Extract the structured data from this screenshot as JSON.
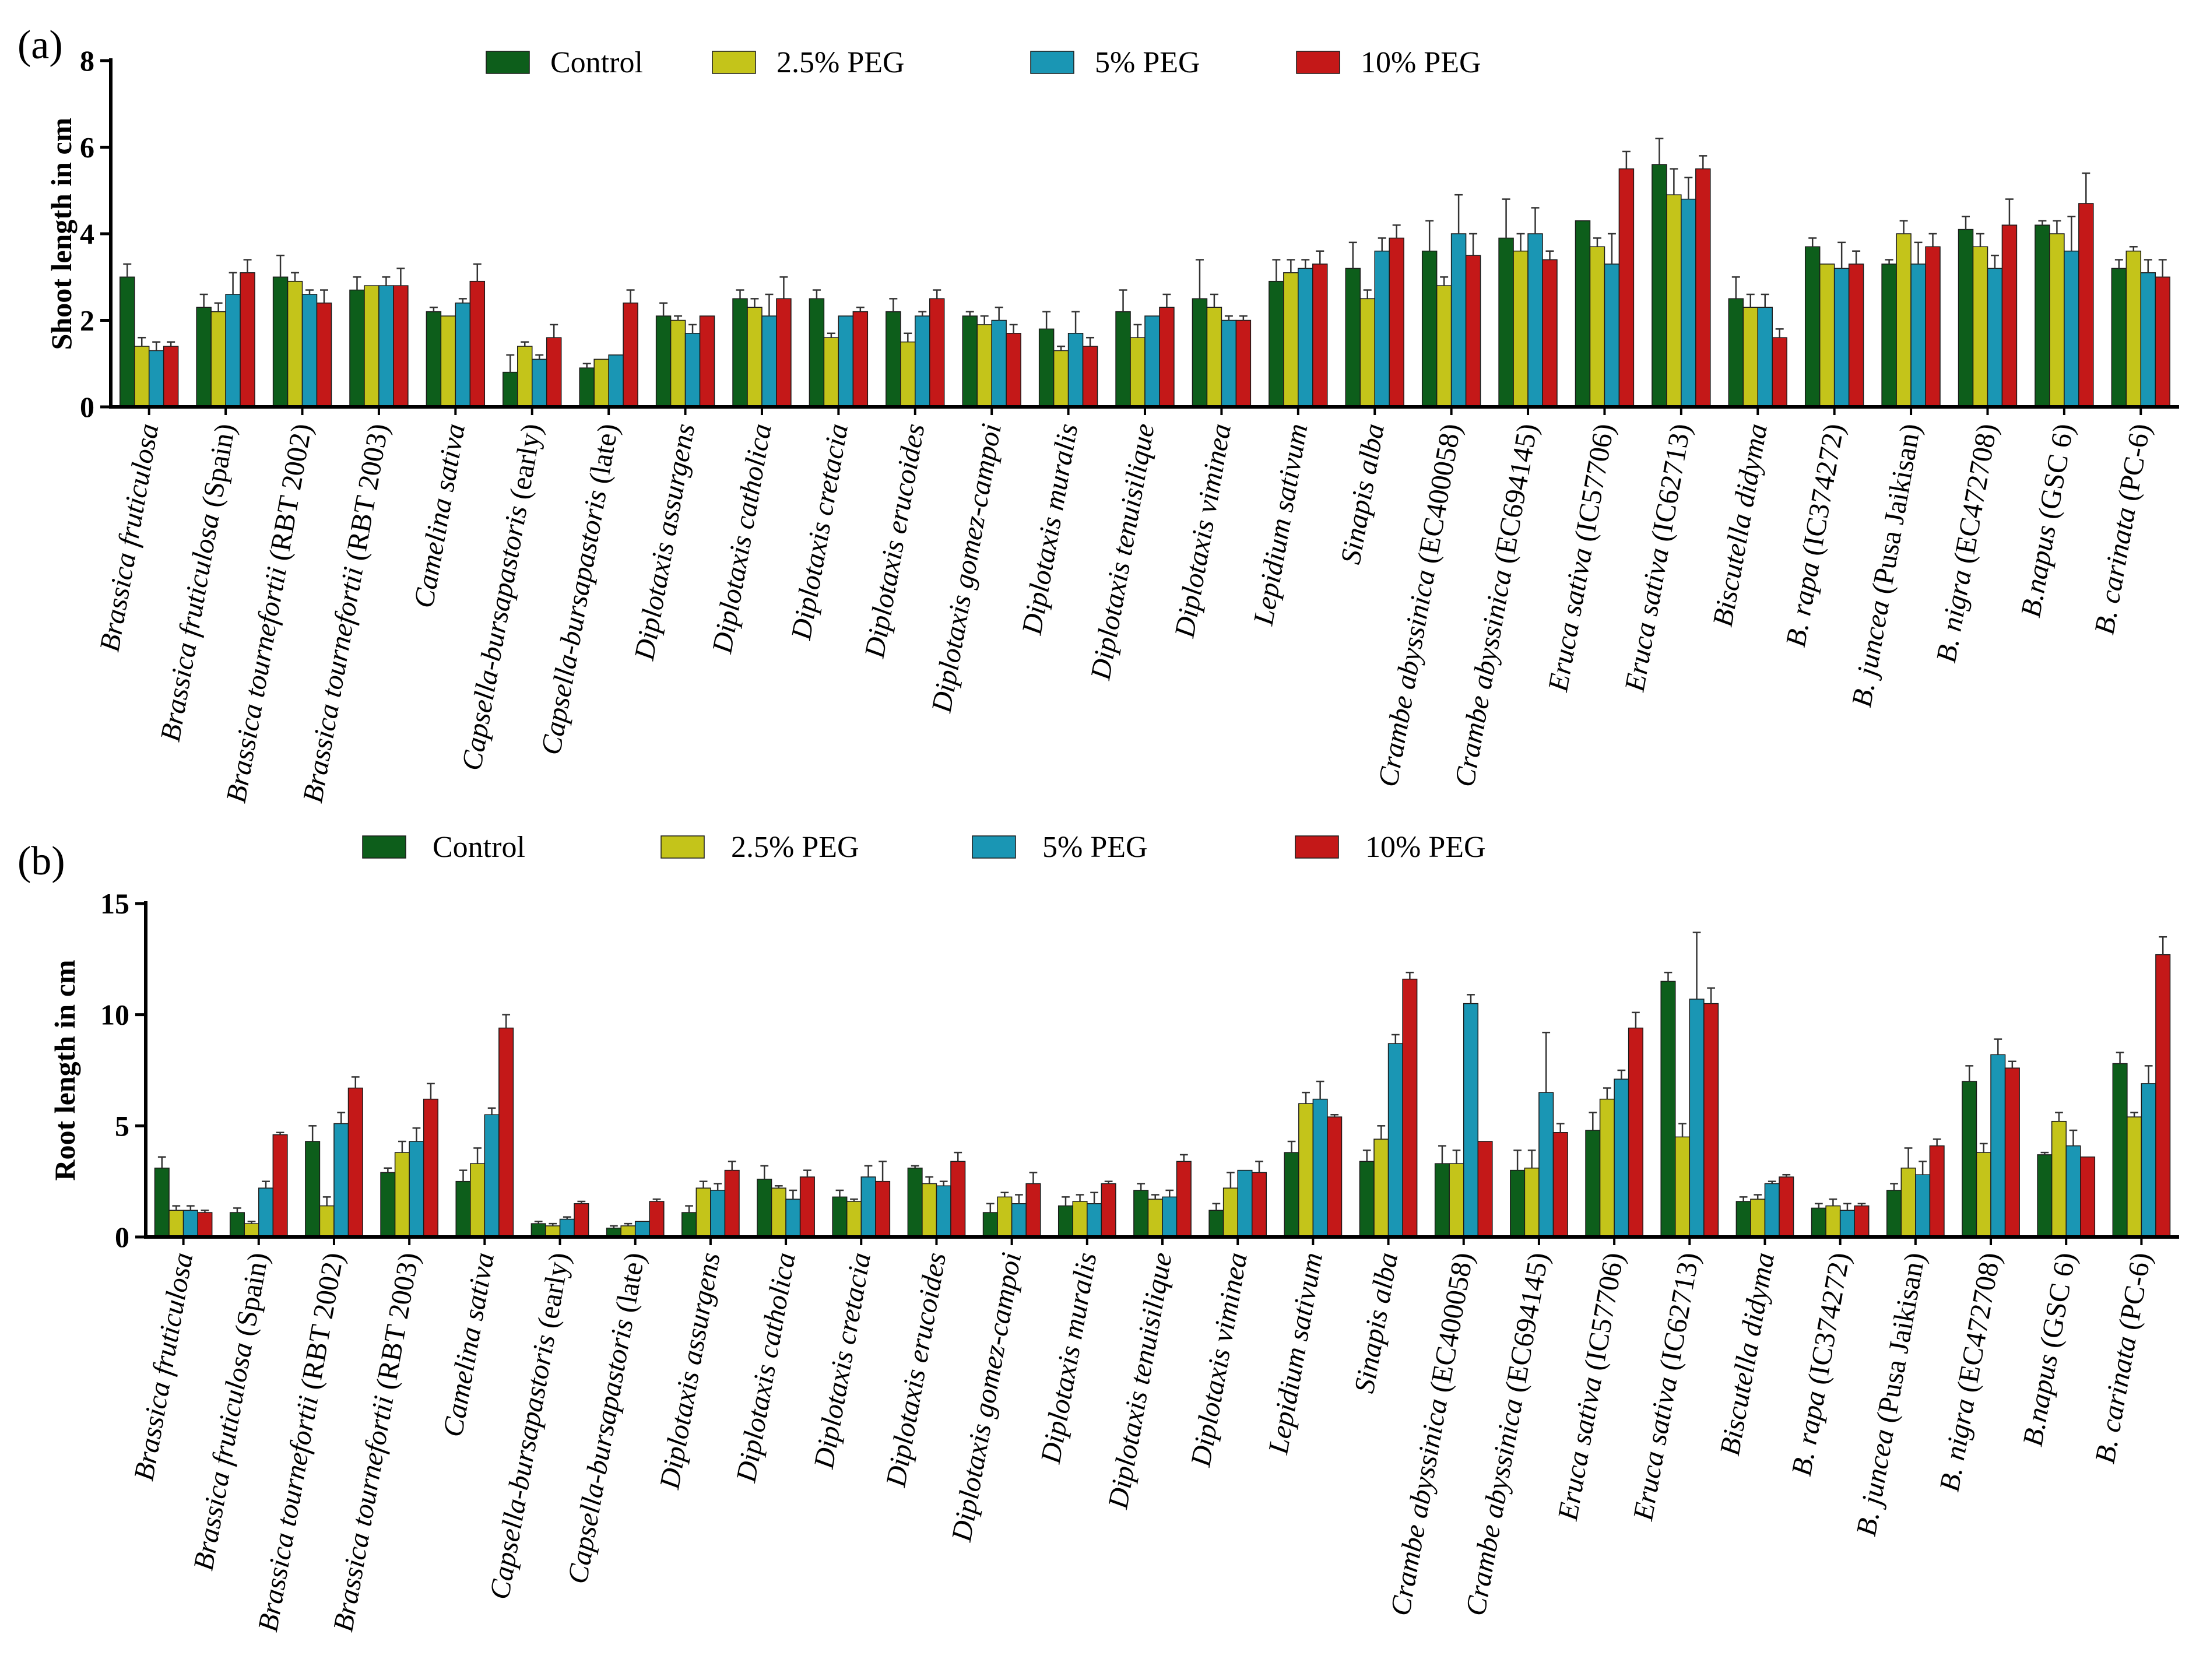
{
  "chart_data": [
    {
      "type": "bar",
      "panel_label": "(a)",
      "ylabel": "Shoot length in cm",
      "ylim": [
        0,
        8
      ],
      "yticks": [
        "0",
        "2",
        "4",
        "6",
        "8"
      ],
      "legend": [
        "Control",
        "2.5% PEG",
        "5% PEG",
        "10% PEG"
      ],
      "categories": [
        {
          "it": "Brassica fruticulosa",
          "rest": ""
        },
        {
          "it": "Brassica fruticulosa",
          "rest": " (Spain)"
        },
        {
          "it": "Brassica tournefortii",
          "rest": " (RBT 2002)"
        },
        {
          "it": "Brassica tournefortii",
          "rest": " (RBT 2003)"
        },
        {
          "it": "Camelina sativa",
          "rest": ""
        },
        {
          "it": "Capsella-bursapastoris",
          "rest": " (early)"
        },
        {
          "it": "Capsella-bursapastoris",
          "rest": " (late)"
        },
        {
          "it": "Diplotaxis assurgens",
          "rest": ""
        },
        {
          "it": "Diplotaxis catholica",
          "rest": ""
        },
        {
          "it": "Diplotaxis cretacia",
          "rest": ""
        },
        {
          "it": "Diplotaxis erucoides",
          "rest": ""
        },
        {
          "it": "Diplotaxis gomez-campoi",
          "rest": ""
        },
        {
          "it": "Diplotaxis muralis",
          "rest": ""
        },
        {
          "it": "Diplotaxis tenuisilique",
          "rest": ""
        },
        {
          "it": "Diplotaxis viminea",
          "rest": ""
        },
        {
          "it": "Lepidium sativum",
          "rest": ""
        },
        {
          "it": "Sinapis alba",
          "rest": ""
        },
        {
          "it": "Crambe abyssinica",
          "rest": " (EC400058)"
        },
        {
          "it": "Crambe abyssinica",
          "rest": " (EC694145)"
        },
        {
          "it": "Eruca sativa",
          "rest": " (IC57706)"
        },
        {
          "it": "Eruca sativa",
          "rest": " (IC62713)"
        },
        {
          "it": "Biscutella didyma",
          "rest": ""
        },
        {
          "it": "B. rapa",
          "rest": " (IC374272)"
        },
        {
          "it": "B. juncea",
          "rest": " (Pusa Jaikisan)"
        },
        {
          "it": "B. nigra",
          "rest": " (EC472708)"
        },
        {
          "it": "B.napus",
          "rest": " (GSC 6)"
        },
        {
          "it": "B. carinata",
          "rest": " (PC-6)"
        }
      ],
      "series": [
        {
          "name": "Control",
          "color": "#0d5e1b",
          "values": [
            3.0,
            2.3,
            3.0,
            2.7,
            2.2,
            0.8,
            0.9,
            2.1,
            2.5,
            2.5,
            2.2,
            2.1,
            1.8,
            2.2,
            2.5,
            2.9,
            3.2,
            3.6,
            3.9,
            4.3,
            5.6,
            2.5,
            3.7,
            3.3,
            4.1,
            4.2,
            3.2
          ],
          "errors": [
            0.3,
            0.3,
            0.5,
            0.3,
            0.1,
            0.4,
            0.1,
            0.3,
            0.2,
            0.2,
            0.3,
            0.1,
            0.4,
            0.5,
            0.9,
            0.5,
            0.6,
            0.7,
            0.9,
            0.0,
            0.6,
            0.5,
            0.2,
            0.1,
            0.3,
            0.1,
            0.2
          ]
        },
        {
          "name": "2.5% PEG",
          "color": "#c4c41a",
          "values": [
            1.4,
            2.2,
            2.9,
            2.8,
            2.1,
            1.4,
            1.1,
            2.0,
            2.3,
            1.6,
            1.5,
            1.9,
            1.3,
            1.6,
            2.3,
            3.1,
            2.5,
            2.8,
            3.6,
            3.7,
            4.9,
            2.3,
            3.3,
            4.0,
            3.7,
            4.0,
            3.6
          ],
          "errors": [
            0.2,
            0.2,
            0.2,
            0.0,
            0.0,
            0.1,
            0.0,
            0.1,
            0.2,
            0.1,
            0.2,
            0.2,
            0.1,
            0.3,
            0.3,
            0.3,
            0.2,
            0.2,
            0.4,
            0.2,
            0.6,
            0.3,
            0.0,
            0.3,
            0.3,
            0.3,
            0.1
          ]
        },
        {
          "name": "5% PEG",
          "color": "#1a96b4",
          "values": [
            1.3,
            2.6,
            2.6,
            2.8,
            2.4,
            1.1,
            1.2,
            1.7,
            2.1,
            2.1,
            2.1,
            2.0,
            1.7,
            2.1,
            2.0,
            3.2,
            3.6,
            4.0,
            4.0,
            3.3,
            4.8,
            2.3,
            3.2,
            3.3,
            3.2,
            3.6,
            3.1
          ],
          "errors": [
            0.2,
            0.5,
            0.1,
            0.2,
            0.1,
            0.1,
            0.0,
            0.2,
            0.5,
            0.0,
            0.1,
            0.3,
            0.5,
            0.0,
            0.1,
            0.2,
            0.3,
            0.9,
            0.6,
            0.7,
            0.5,
            0.3,
            0.6,
            0.5,
            0.3,
            0.8,
            0.3
          ]
        },
        {
          "name": "10% PEG",
          "color": "#c41818",
          "values": [
            1.4,
            3.1,
            2.4,
            2.8,
            2.9,
            1.6,
            2.4,
            2.1,
            2.5,
            2.2,
            2.5,
            1.7,
            1.4,
            2.3,
            2.0,
            3.3,
            3.9,
            3.5,
            3.4,
            5.5,
            5.5,
            1.6,
            3.3,
            3.7,
            4.2,
            4.7,
            3.0
          ],
          "errors": [
            0.1,
            0.3,
            0.3,
            0.4,
            0.4,
            0.3,
            0.3,
            0.0,
            0.5,
            0.1,
            0.2,
            0.2,
            0.2,
            0.3,
            0.1,
            0.3,
            0.3,
            0.5,
            0.2,
            0.4,
            0.3,
            0.2,
            0.3,
            0.3,
            0.6,
            0.7,
            0.4
          ]
        }
      ]
    },
    {
      "type": "bar",
      "panel_label": "(b)",
      "ylabel": "Root length in cm",
      "ylim": [
        0,
        15
      ],
      "yticks": [
        "0",
        "5",
        "10",
        "15"
      ],
      "legend": [
        "Control",
        "2.5% PEG",
        "5% PEG",
        "10% PEG"
      ],
      "categories": [
        {
          "it": "Brassica fruticulosa",
          "rest": ""
        },
        {
          "it": "Brassica fruticulosa",
          "rest": " (Spain)"
        },
        {
          "it": "Brassica tournefortii",
          "rest": " (RBT 2002)"
        },
        {
          "it": "Brassica tournefortii",
          "rest": " (RBT 2003)"
        },
        {
          "it": "Camelina sativa",
          "rest": ""
        },
        {
          "it": "Capsella-bursapastoris",
          "rest": " (early)"
        },
        {
          "it": "Capsella-bursapastoris",
          "rest": " (late)"
        },
        {
          "it": "Diplotaxis assurgens",
          "rest": ""
        },
        {
          "it": "Diplotaxis catholica",
          "rest": ""
        },
        {
          "it": "Diplotaxis cretacia",
          "rest": ""
        },
        {
          "it": "Diplotaxis erucoides",
          "rest": ""
        },
        {
          "it": "Diplotaxis gomez-campoi",
          "rest": ""
        },
        {
          "it": "Diplotaxis muralis",
          "rest": ""
        },
        {
          "it": "Diplotaxis tenuisilique",
          "rest": ""
        },
        {
          "it": "Diplotaxis viminea",
          "rest": ""
        },
        {
          "it": "Lepidium sativum",
          "rest": ""
        },
        {
          "it": "Sinapis alba",
          "rest": ""
        },
        {
          "it": "Crambe abyssinica",
          "rest": " (EC400058)"
        },
        {
          "it": "Crambe abyssinica",
          "rest": " (EC694145)"
        },
        {
          "it": "Eruca sativa",
          "rest": " (IC57706)"
        },
        {
          "it": "Eruca sativa",
          "rest": " (IC62713)"
        },
        {
          "it": "Biscutella didyma",
          "rest": ""
        },
        {
          "it": "B. rapa",
          "rest": " (IC374272)"
        },
        {
          "it": "B. juncea",
          "rest": " (Pusa Jaikisan)"
        },
        {
          "it": "B. nigra",
          "rest": " (EC472708)"
        },
        {
          "it": "B.napus",
          "rest": " (GSC 6)"
        },
        {
          "it": "B. carinata",
          "rest": " (PC-6)"
        }
      ],
      "series": [
        {
          "name": "Control",
          "color": "#0d5e1b",
          "values": [
            3.1,
            1.1,
            4.3,
            2.9,
            2.5,
            0.6,
            0.4,
            1.1,
            2.6,
            1.8,
            3.1,
            1.1,
            1.4,
            2.1,
            1.2,
            3.8,
            3.4,
            3.3,
            3.0,
            4.8,
            11.5,
            1.6,
            1.3,
            2.1,
            7.0,
            3.7,
            7.8
          ],
          "errors": [
            0.5,
            0.2,
            0.7,
            0.2,
            0.5,
            0.1,
            0.1,
            0.3,
            0.6,
            0.3,
            0.1,
            0.4,
            0.4,
            0.3,
            0.3,
            0.5,
            0.5,
            0.8,
            0.9,
            0.8,
            0.4,
            0.2,
            0.2,
            0.3,
            0.7,
            0.1,
            0.5
          ]
        },
        {
          "name": "2.5% PEG",
          "color": "#c4c41a",
          "values": [
            1.2,
            0.6,
            1.4,
            3.8,
            3.3,
            0.5,
            0.5,
            2.2,
            2.2,
            1.6,
            2.4,
            1.8,
            1.6,
            1.7,
            2.2,
            6.0,
            4.4,
            3.3,
            3.1,
            6.2,
            4.5,
            1.7,
            1.4,
            3.1,
            3.8,
            5.2,
            5.4
          ],
          "errors": [
            0.2,
            0.1,
            0.4,
            0.5,
            0.7,
            0.1,
            0.1,
            0.3,
            0.1,
            0.1,
            0.3,
            0.2,
            0.3,
            0.2,
            0.7,
            0.5,
            0.6,
            0.6,
            0.8,
            0.5,
            0.6,
            0.2,
            0.3,
            0.9,
            0.4,
            0.4,
            0.2
          ]
        },
        {
          "name": "5% PEG",
          "color": "#1a96b4",
          "values": [
            1.2,
            2.2,
            5.1,
            4.3,
            5.5,
            0.8,
            0.7,
            2.1,
            1.7,
            2.7,
            2.3,
            1.5,
            1.5,
            1.8,
            3.0,
            6.2,
            8.7,
            10.5,
            6.5,
            7.1,
            10.7,
            2.4,
            1.2,
            2.8,
            8.2,
            4.1,
            6.9
          ],
          "errors": [
            0.2,
            0.3,
            0.5,
            0.6,
            0.3,
            0.1,
            0.0,
            0.3,
            0.4,
            0.5,
            0.2,
            0.4,
            0.5,
            0.3,
            0.0,
            0.8,
            0.4,
            0.4,
            2.7,
            0.4,
            3.0,
            0.1,
            0.3,
            0.6,
            0.7,
            0.7,
            0.8
          ]
        },
        {
          "name": "10% PEG",
          "color": "#c41818",
          "values": [
            1.1,
            4.6,
            6.7,
            6.2,
            9.4,
            1.5,
            1.6,
            3.0,
            2.7,
            2.5,
            3.4,
            2.4,
            2.4,
            3.4,
            2.9,
            5.4,
            11.6,
            4.3,
            4.7,
            9.4,
            10.5,
            2.7,
            1.4,
            4.1,
            7.6,
            3.6,
            12.7
          ],
          "errors": [
            0.1,
            0.1,
            0.5,
            0.7,
            0.6,
            0.1,
            0.1,
            0.4,
            0.3,
            0.9,
            0.4,
            0.5,
            0.1,
            0.3,
            0.5,
            0.1,
            0.3,
            0.0,
            0.4,
            0.7,
            0.7,
            0.1,
            0.1,
            0.3,
            0.3,
            0.0,
            0.8
          ]
        }
      ]
    }
  ]
}
